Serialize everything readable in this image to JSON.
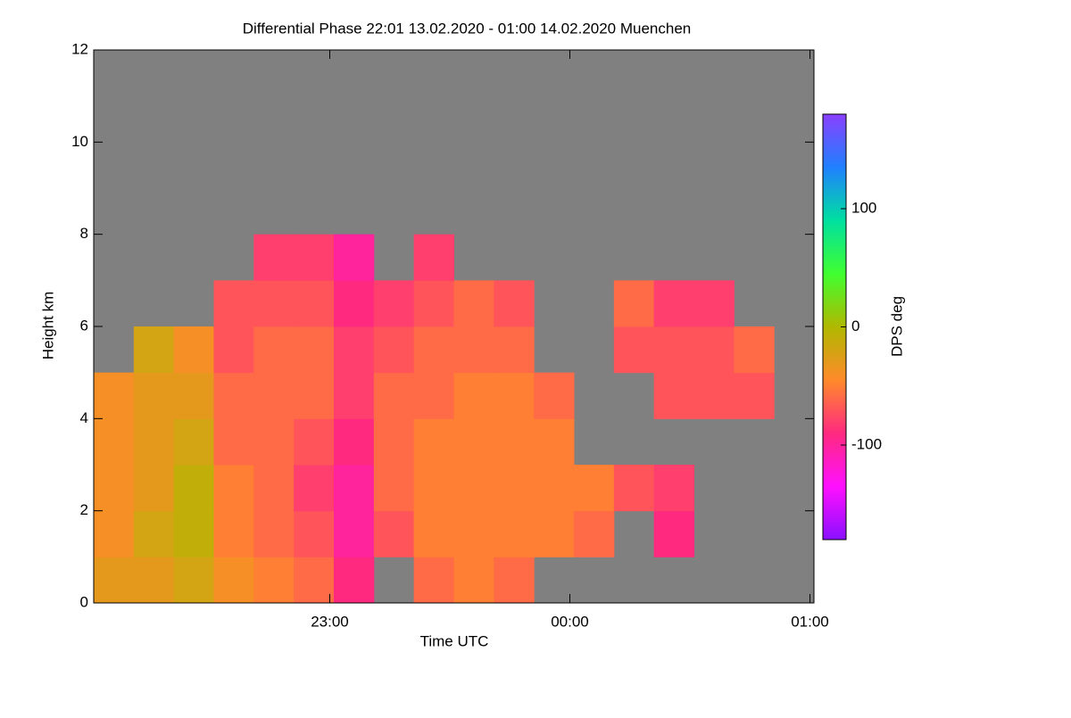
{
  "chart_data": {
    "type": "heatmap",
    "title": "Differential Phase   22:01 13.02.2020 - 01:00 14.02.2020 Muenchen",
    "xlabel": "Time UTC",
    "ylabel": "Height km",
    "colorbar_label": "DPS deg",
    "x": [
      22.1,
      22.2667,
      22.4333,
      22.6,
      22.7667,
      22.9333,
      23.1,
      23.2667,
      23.4333,
      23.6,
      23.7667,
      23.9333,
      24.1,
      24.2667,
      24.4333,
      24.6,
      24.7667,
      24.9333
    ],
    "y": [
      0.5,
      1.5,
      2.5,
      3.5,
      4.5,
      5.5,
      6.5,
      7.5,
      8.5,
      9.5,
      10.5,
      11.5
    ],
    "z": [
      [
        -30,
        -30,
        -20,
        -40,
        -50,
        -60,
        -90,
        null,
        -60,
        -50,
        -60,
        null,
        null,
        null,
        null,
        null,
        null,
        null
      ],
      [
        -40,
        -20,
        -10,
        -50,
        -60,
        -70,
        -100,
        -70,
        -50,
        -50,
        -50,
        -50,
        -60,
        null,
        -90,
        null,
        null,
        null
      ],
      [
        -40,
        -30,
        -10,
        -50,
        -60,
        -80,
        -100,
        -60,
        -50,
        -50,
        -50,
        -50,
        -50,
        -70,
        -80,
        null,
        null,
        null
      ],
      [
        -40,
        -30,
        -20,
        -60,
        -60,
        -70,
        -90,
        -60,
        -50,
        -50,
        -50,
        -50,
        null,
        null,
        null,
        null,
        null,
        null
      ],
      [
        -40,
        -30,
        -30,
        -60,
        -60,
        -60,
        -80,
        -60,
        -60,
        -50,
        -50,
        -60,
        null,
        null,
        -70,
        -70,
        -70,
        null
      ],
      [
        null,
        -20,
        -40,
        -70,
        -60,
        -60,
        -80,
        -70,
        -60,
        -60,
        -60,
        null,
        null,
        -70,
        -70,
        -70,
        -60,
        null
      ],
      [
        null,
        null,
        null,
        -70,
        -70,
        -70,
        -90,
        -80,
        -70,
        -60,
        -70,
        null,
        null,
        -60,
        -80,
        -80,
        null,
        null
      ],
      [
        null,
        null,
        null,
        null,
        -80,
        -80,
        -100,
        null,
        -80,
        null,
        null,
        null,
        null,
        null,
        null,
        null,
        null,
        null
      ],
      [
        null,
        null,
        null,
        null,
        null,
        null,
        null,
        null,
        null,
        null,
        null,
        null,
        null,
        null,
        null,
        null,
        null,
        null
      ],
      [
        null,
        null,
        null,
        null,
        null,
        null,
        null,
        null,
        null,
        null,
        null,
        null,
        null,
        null,
        null,
        null,
        null,
        null
      ],
      [
        null,
        null,
        null,
        null,
        null,
        null,
        null,
        null,
        null,
        null,
        null,
        null,
        null,
        null,
        null,
        null,
        null,
        null
      ],
      [
        null,
        null,
        null,
        null,
        null,
        null,
        null,
        null,
        null,
        null,
        null,
        null,
        null,
        null,
        null,
        null,
        null,
        null
      ]
    ],
    "xlim": [
      22.0167,
      25.0167
    ],
    "xticks": [
      {
        "value": 23,
        "label": "23:00"
      },
      {
        "value": 24,
        "label": "00:00"
      },
      {
        "value": 25,
        "label": "01:00"
      }
    ],
    "ylim": [
      0,
      12
    ],
    "yticks": [
      0,
      2,
      4,
      6,
      8,
      10,
      12
    ],
    "zlim": [
      -180,
      180
    ],
    "zticks": [
      -100,
      0,
      100
    ],
    "colormap": [
      "#8a10ff",
      "#ff10ff",
      "#ff2a80",
      "#ff8a2a",
      "#b0b800",
      "#40ff30",
      "#00e0a0",
      "#2080ff",
      "#8a40ff"
    ],
    "missing_color": "#808080"
  }
}
